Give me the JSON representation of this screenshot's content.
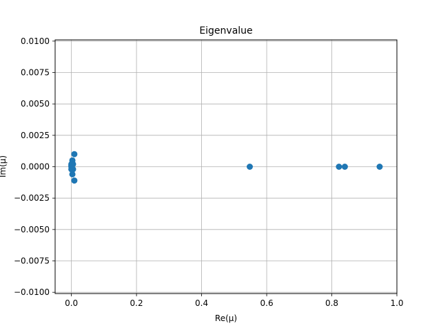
{
  "chart_data": {
    "type": "scatter",
    "title": "Eigenvalue",
    "xlabel": "Re(μ)",
    "ylabel": "Im(μ)",
    "xlim": [
      -0.05,
      1.0
    ],
    "ylim": [
      -0.0101,
      0.0101
    ],
    "xticks": [
      0.0,
      0.2,
      0.4,
      0.6,
      0.8,
      1.0
    ],
    "xtick_labels": [
      "0.0",
      "0.2",
      "0.4",
      "0.6",
      "0.8",
      "1.0"
    ],
    "yticks": [
      -0.01,
      -0.0075,
      -0.005,
      -0.0025,
      0.0,
      0.0025,
      0.005,
      0.0075,
      0.01
    ],
    "ytick_labels": [
      "−0.0100",
      "−0.0075",
      "−0.0050",
      "−0.0025",
      "0.0000",
      "0.0025",
      "0.0050",
      "0.0075",
      "0.0100"
    ],
    "grid": true,
    "marker_color": "#1f77b4",
    "series": [
      {
        "x": [
          0.0,
          0.0,
          0.0,
          0.0,
          0.003,
          0.003,
          0.005,
          0.005,
          0.009,
          0.009,
          0.548,
          0.822,
          0.84,
          0.947
        ],
        "y": [
          0.0,
          0.0002,
          -0.0002,
          0.0001,
          0.0005,
          -0.0006,
          0.0002,
          -0.0002,
          0.001,
          -0.0011,
          0.0,
          0.0,
          0.0,
          0.0
        ]
      }
    ]
  }
}
